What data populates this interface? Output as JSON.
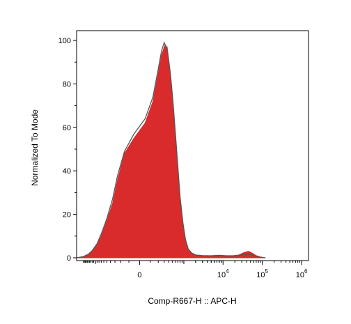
{
  "chart_data": {
    "type": "area",
    "title": "",
    "xlabel": "Comp-R667-H :: APC-H",
    "ylabel": "Normalized To Mode",
    "x_scale": "biexponential",
    "ylim": [
      0,
      100
    ],
    "grid": false,
    "legend": "none",
    "y_ticks": [
      {
        "value": 0,
        "label": "0"
      },
      {
        "value": 20,
        "label": "20"
      },
      {
        "value": 40,
        "label": "40"
      },
      {
        "value": 60,
        "label": "60"
      },
      {
        "value": 80,
        "label": "80"
      },
      {
        "value": 100,
        "label": "100"
      }
    ],
    "x_ticks": [
      {
        "value": 0,
        "base": "0",
        "exp": ""
      },
      {
        "value": 10000,
        "base": "10",
        "exp": "4"
      },
      {
        "value": 100000,
        "base": "10",
        "exp": "5"
      },
      {
        "value": 1000000,
        "base": "10",
        "exp": "6"
      }
    ],
    "colors": {
      "fill": "#d92b2b",
      "outline": "#555555"
    },
    "series": [
      {
        "style": "filled",
        "points": [
          [
            -3000,
            0
          ],
          [
            -2000,
            0.5
          ],
          [
            -1500,
            1.5
          ],
          [
            -1200,
            3
          ],
          [
            -900,
            6
          ],
          [
            -700,
            10
          ],
          [
            -500,
            17
          ],
          [
            -350,
            25
          ],
          [
            -250,
            36
          ],
          [
            -150,
            48
          ],
          [
            -50,
            55
          ],
          [
            50,
            62
          ],
          [
            130,
            72
          ],
          [
            200,
            85
          ],
          [
            250,
            93
          ],
          [
            300,
            97
          ],
          [
            330,
            98
          ],
          [
            360,
            96
          ],
          [
            400,
            90
          ],
          [
            450,
            82
          ],
          [
            520,
            70
          ],
          [
            600,
            56
          ],
          [
            700,
            40
          ],
          [
            800,
            27
          ],
          [
            950,
            15
          ],
          [
            1100,
            8
          ],
          [
            1300,
            4
          ],
          [
            1600,
            2
          ],
          [
            2000,
            1.2
          ],
          [
            3000,
            1
          ],
          [
            5000,
            1
          ],
          [
            8000,
            1.2
          ],
          [
            12000,
            1
          ],
          [
            18000,
            1
          ],
          [
            25000,
            1.3
          ],
          [
            35000,
            2.5
          ],
          [
            45000,
            3
          ],
          [
            55000,
            2.2
          ],
          [
            70000,
            1
          ],
          [
            90000,
            0.4
          ],
          [
            120000,
            0
          ]
        ]
      },
      {
        "style": "outline",
        "points": [
          [
            -3000,
            0
          ],
          [
            -2000,
            0.6
          ],
          [
            -1500,
            1.7
          ],
          [
            -1200,
            3.3
          ],
          [
            -900,
            6.5
          ],
          [
            -700,
            11
          ],
          [
            -500,
            18
          ],
          [
            -350,
            27
          ],
          [
            -250,
            38
          ],
          [
            -150,
            49
          ],
          [
            -50,
            57
          ],
          [
            50,
            64
          ],
          [
            130,
            74
          ],
          [
            200,
            87
          ],
          [
            250,
            95
          ],
          [
            300,
            99
          ],
          [
            330,
            97
          ],
          [
            360,
            97
          ],
          [
            400,
            91
          ],
          [
            450,
            84
          ],
          [
            520,
            72
          ],
          [
            600,
            58
          ],
          [
            700,
            42
          ],
          [
            800,
            28
          ],
          [
            950,
            16
          ],
          [
            1100,
            8.5
          ],
          [
            1300,
            4
          ],
          [
            1600,
            2.2
          ],
          [
            2000,
            1.3
          ],
          [
            3000,
            1
          ],
          [
            5000,
            0.9
          ],
          [
            8000,
            1
          ],
          [
            12000,
            0.9
          ],
          [
            18000,
            0.8
          ],
          [
            25000,
            1
          ],
          [
            35000,
            1.5
          ],
          [
            45000,
            1.8
          ],
          [
            55000,
            1.3
          ],
          [
            70000,
            0.6
          ],
          [
            90000,
            0.2
          ],
          [
            120000,
            0
          ]
        ]
      }
    ]
  }
}
